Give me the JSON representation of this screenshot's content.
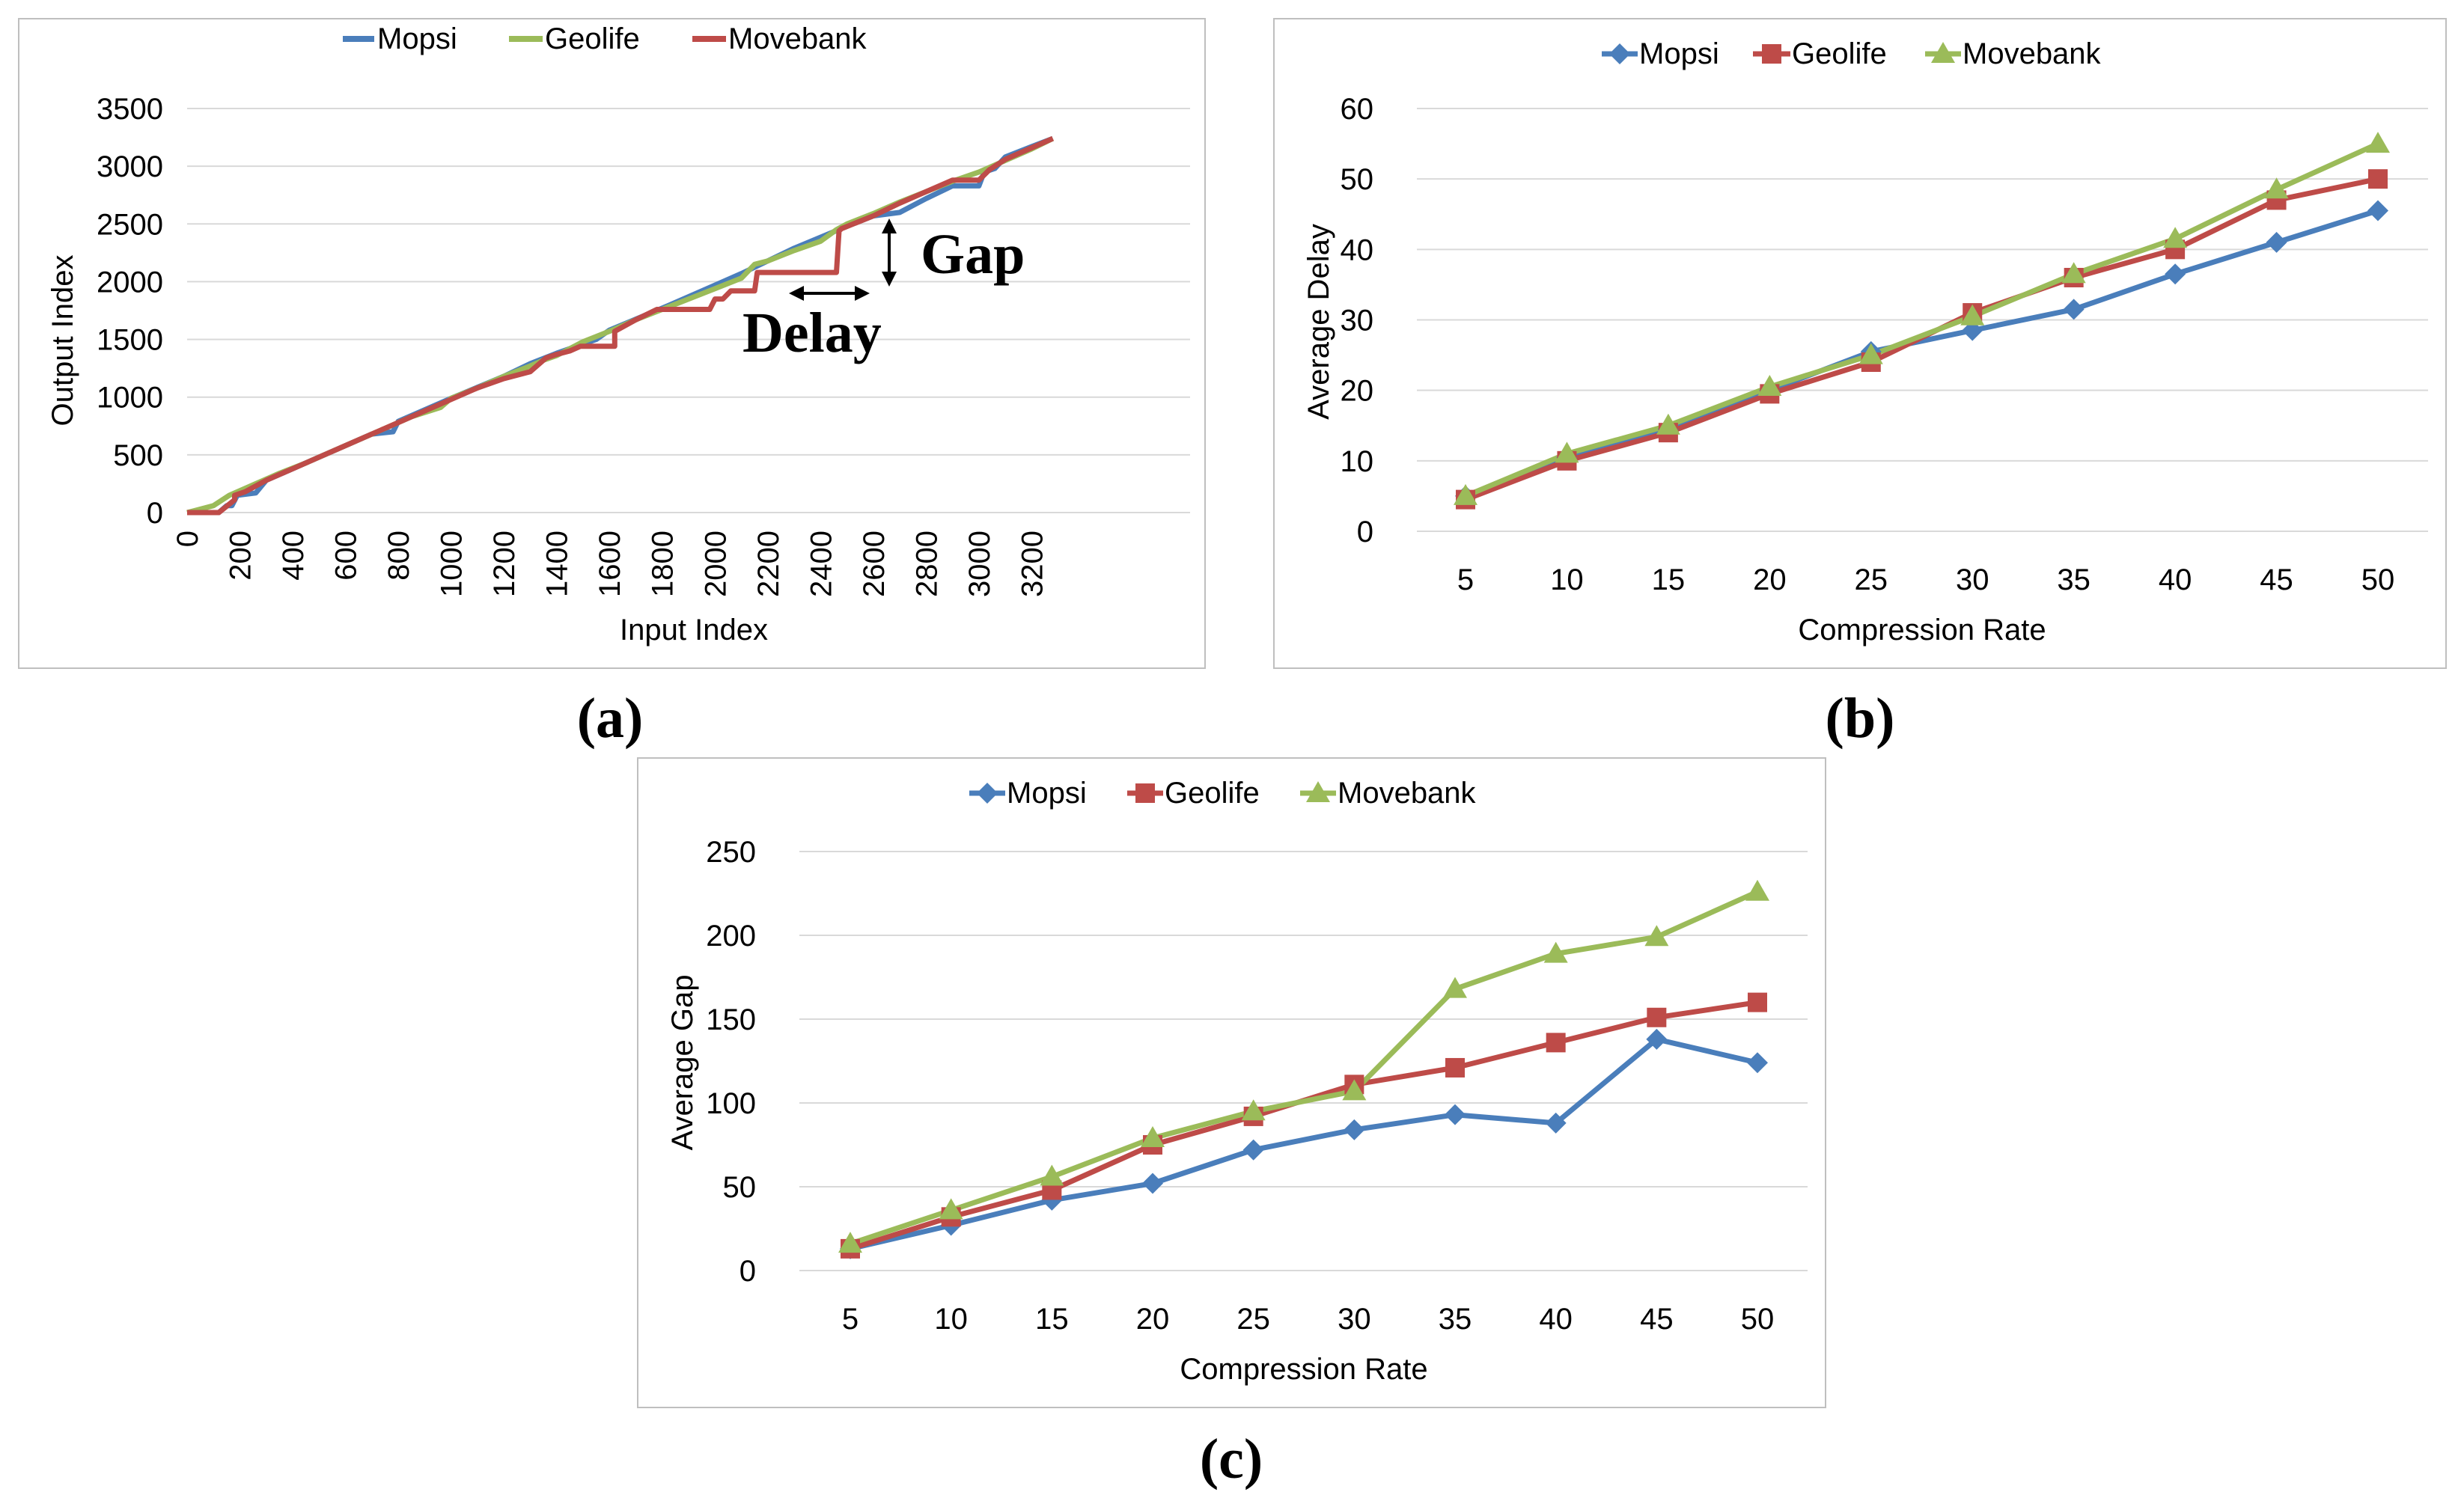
{
  "colors": {
    "mopsi": "#4a7ebb",
    "geolife": "#9bbb59",
    "movebank": "#be4b48",
    "grid": "#d9d9d9",
    "frame": "#bfbfbf"
  },
  "chart_data": [
    {
      "id": "a",
      "type": "line",
      "panel_label": "(a)",
      "xlabel": "Input Index",
      "ylabel": "Output Index",
      "xlim": [
        0,
        3800
      ],
      "ylim": [
        0,
        3500
      ],
      "xticks": [
        "0",
        "200",
        "400",
        "600",
        "800",
        "1000",
        "1200",
        "1400",
        "1600",
        "1800",
        "2000",
        "2200",
        "2400",
        "2600",
        "2800",
        "3000",
        "3200"
      ],
      "yticks": [
        "0",
        "500",
        "1000",
        "1500",
        "2000",
        "2500",
        "3000",
        "3500"
      ],
      "grid": true,
      "legend_position": "top",
      "annotations": [
        "Gap",
        "Delay"
      ],
      "series": [
        {
          "name": "Mopsi",
          "color": "#4a7ebb",
          "x": [
            0,
            120,
            150,
            170,
            190,
            260,
            300,
            380,
            460,
            560,
            700,
            780,
            800,
            1000,
            1200,
            1300,
            1400,
            1550,
            1600,
            1800,
            2000,
            2100,
            2300,
            2500,
            2600,
            2700,
            2800,
            2900,
            3000,
            3020,
            3060,
            3100,
            3200,
            3280
          ],
          "y": [
            0,
            0,
            60,
            60,
            150,
            170,
            280,
            360,
            440,
            540,
            680,
            700,
            790,
            990,
            1180,
            1290,
            1380,
            1500,
            1580,
            1770,
            1970,
            2070,
            2290,
            2480,
            2570,
            2600,
            2720,
            2830,
            2830,
            2950,
            2980,
            3080,
            3170,
            3240
          ]
        },
        {
          "name": "Geolife",
          "color": "#9bbb59",
          "x": [
            0,
            100,
            160,
            250,
            350,
            450,
            550,
            650,
            750,
            850,
            960,
            1000,
            1100,
            1200,
            1300,
            1350,
            1400,
            1500,
            1600,
            1700,
            1800,
            1900,
            2000,
            2100,
            2150,
            2200,
            2300,
            2400,
            2460,
            2500,
            2600,
            2700,
            2800,
            2900,
            3000,
            3100,
            3200,
            3280
          ],
          "y": [
            0,
            60,
            150,
            240,
            340,
            430,
            530,
            630,
            730,
            830,
            910,
            990,
            1080,
            1180,
            1270,
            1320,
            1360,
            1480,
            1570,
            1670,
            1760,
            1850,
            1940,
            2030,
            2150,
            2180,
            2270,
            2350,
            2450,
            2500,
            2590,
            2690,
            2780,
            2870,
            2950,
            3050,
            3150,
            3240
          ]
        },
        {
          "name": "Movebank",
          "color": "#be4b48",
          "x": [
            0,
            120,
            180,
            180,
            220,
            300,
            400,
            500,
            600,
            700,
            800,
            900,
            1000,
            1100,
            1200,
            1300,
            1360,
            1400,
            1450,
            1490,
            1500,
            1620,
            1620,
            1700,
            1780,
            1980,
            2000,
            2030,
            2060,
            2060,
            2150,
            2160,
            2460,
            2470,
            2480,
            2600,
            2700,
            2800,
            2900,
            2950,
            3000,
            3040,
            3100,
            3200,
            3280
          ],
          "y": [
            0,
            0,
            110,
            150,
            180,
            280,
            380,
            480,
            580,
            680,
            780,
            880,
            980,
            1080,
            1160,
            1220,
            1340,
            1370,
            1400,
            1440,
            1440,
            1440,
            1570,
            1670,
            1760,
            1760,
            1850,
            1850,
            1920,
            1920,
            1920,
            2080,
            2080,
            2440,
            2460,
            2570,
            2680,
            2780,
            2880,
            2880,
            2880,
            2970,
            3060,
            3160,
            3240
          ]
        }
      ]
    },
    {
      "id": "b",
      "type": "line",
      "panel_label": "(b)",
      "xlabel": "Compression Rate",
      "ylabel": "Average Delay",
      "categories": [
        "5",
        "10",
        "15",
        "20",
        "25",
        "30",
        "35",
        "40",
        "45",
        "50"
      ],
      "ylim": [
        0,
        60
      ],
      "yticks": [
        "0",
        "10",
        "20",
        "30",
        "40",
        "50",
        "60"
      ],
      "grid": true,
      "legend_position": "top",
      "series": [
        {
          "name": "Mopsi",
          "color": "#4a7ebb",
          "marker": "diamond",
          "values": [
            5,
            10.5,
            14.5,
            20,
            25.5,
            28.5,
            31.5,
            36.5,
            41,
            45.5
          ]
        },
        {
          "name": "Geolife",
          "color": "#be4b48",
          "marker": "square",
          "values": [
            4.5,
            10,
            14,
            19.5,
            24,
            31,
            36,
            40,
            47,
            50
          ]
        },
        {
          "name": "Movebank",
          "color": "#9bbb59",
          "marker": "triangle",
          "values": [
            5,
            11,
            15,
            20.5,
            25,
            30.5,
            36.5,
            41.5,
            48.5,
            55
          ]
        }
      ]
    },
    {
      "id": "c",
      "type": "line",
      "panel_label": "(c)",
      "xlabel": "Compression Rate",
      "ylabel": "Average Gap",
      "categories": [
        "5",
        "10",
        "15",
        "20",
        "25",
        "30",
        "35",
        "40",
        "45",
        "50"
      ],
      "ylim": [
        0,
        250
      ],
      "yticks": [
        "0",
        "50",
        "100",
        "150",
        "200",
        "250"
      ],
      "grid": true,
      "legend_position": "top",
      "series": [
        {
          "name": "Mopsi",
          "color": "#4a7ebb",
          "marker": "diamond",
          "values": [
            13,
            27,
            42,
            52,
            72,
            84,
            93,
            88,
            138,
            124
          ]
        },
        {
          "name": "Geolife",
          "color": "#be4b48",
          "marker": "square",
          "values": [
            13,
            32,
            48,
            75,
            92,
            111,
            121,
            136,
            151,
            160
          ]
        },
        {
          "name": "Movebank",
          "color": "#9bbb59",
          "marker": "triangle",
          "values": [
            16,
            36,
            56,
            79,
            95,
            107,
            168,
            189,
            199,
            226
          ]
        }
      ]
    }
  ]
}
